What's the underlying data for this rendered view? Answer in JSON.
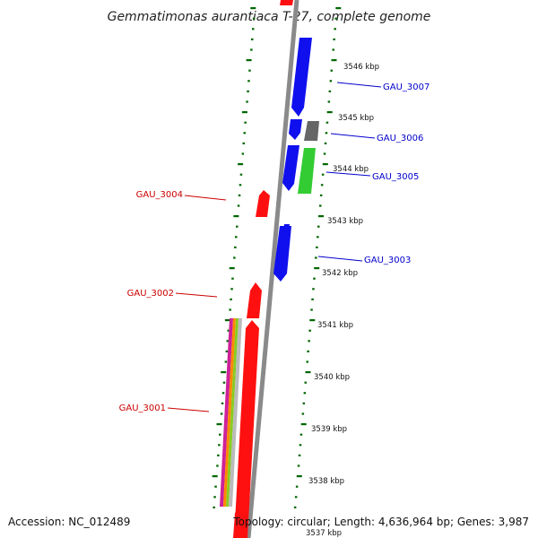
{
  "title": "Gemmatimonas aurantiaca T-27, complete genome",
  "accession": "Accession: NC_012489",
  "summary": "Topology: circular; Length: 4,636,964 bp; Genes: 3,987",
  "scale_labels": [
    "3546 kbp",
    "3545 kbp",
    "3544 kbp",
    "3543 kbp",
    "3542 kbp",
    "3541 kbp",
    "3540 kbp",
    "3539 kbp",
    "3538 kbp",
    "3537 kbp"
  ],
  "genes": [
    {
      "label": "GAU_3007",
      "strand": "reverse",
      "color": "#0000cc"
    },
    {
      "label": "GAU_3006",
      "strand": "reverse",
      "color": "#0000cc"
    },
    {
      "label": "GAU_3005",
      "strand": "reverse",
      "color": "#0000cc"
    },
    {
      "label": "GAU_3004",
      "strand": "forward",
      "color": "#cc0000"
    },
    {
      "label": "GAU_3003",
      "strand": "reverse",
      "color": "#0000cc"
    },
    {
      "label": "GAU_3002",
      "strand": "forward",
      "color": "#cc0000"
    },
    {
      "label": "GAU_3001",
      "strand": "forward",
      "color": "#cc0000"
    }
  ],
  "colors": {
    "forward": "#ff1010",
    "reverse": "#1010ee",
    "backbone": "#888888",
    "ticks": "#006600",
    "other": "#777777",
    "green": "#33cc33"
  }
}
